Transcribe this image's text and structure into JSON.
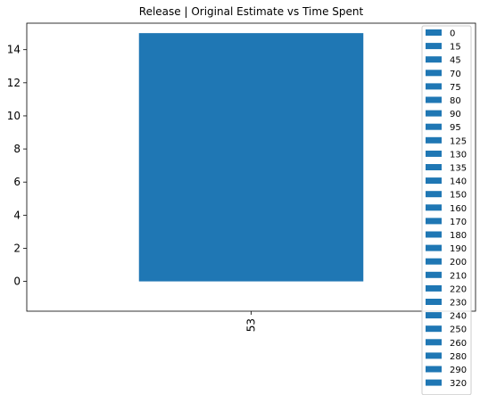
{
  "chart_data": {
    "type": "bar",
    "title": "Release | Original Estimate vs Time Spent",
    "xlabel": "",
    "ylabel": "",
    "categories": [
      "53"
    ],
    "ylim": [
      -1.8,
      15.6
    ],
    "yticks": [
      0,
      2,
      4,
      6,
      8,
      10,
      12,
      14
    ],
    "grid": false,
    "legend_position": "right",
    "bar_color": "#1f77b4",
    "legend": [
      "0",
      "15",
      "45",
      "70",
      "75",
      "80",
      "90",
      "95",
      "125",
      "130",
      "135",
      "140",
      "150",
      "160",
      "170",
      "180",
      "190",
      "200",
      "210",
      "220",
      "230",
      "240",
      "250",
      "260",
      "280",
      "290",
      "320"
    ],
    "series": [
      {
        "name": "0",
        "values": [
          15
        ]
      },
      {
        "name": "15",
        "values": [
          0
        ]
      },
      {
        "name": "45",
        "values": [
          0
        ]
      },
      {
        "name": "70",
        "values": [
          0
        ]
      },
      {
        "name": "75",
        "values": [
          0
        ]
      },
      {
        "name": "80",
        "values": [
          0
        ]
      },
      {
        "name": "90",
        "values": [
          0
        ]
      },
      {
        "name": "95",
        "values": [
          0
        ]
      },
      {
        "name": "125",
        "values": [
          0
        ]
      },
      {
        "name": "130",
        "values": [
          0
        ]
      },
      {
        "name": "135",
        "values": [
          0
        ]
      },
      {
        "name": "140",
        "values": [
          0
        ]
      },
      {
        "name": "150",
        "values": [
          0
        ]
      },
      {
        "name": "160",
        "values": [
          0
        ]
      },
      {
        "name": "170",
        "values": [
          0
        ]
      },
      {
        "name": "180",
        "values": [
          0
        ]
      },
      {
        "name": "190",
        "values": [
          0
        ]
      },
      {
        "name": "200",
        "values": [
          0
        ]
      },
      {
        "name": "210",
        "values": [
          0
        ]
      },
      {
        "name": "220",
        "values": [
          0
        ]
      },
      {
        "name": "230",
        "values": [
          0
        ]
      },
      {
        "name": "240",
        "values": [
          0
        ]
      },
      {
        "name": "250",
        "values": [
          0
        ]
      },
      {
        "name": "260",
        "values": [
          0
        ]
      },
      {
        "name": "280",
        "values": [
          0
        ]
      },
      {
        "name": "290",
        "values": [
          0
        ]
      },
      {
        "name": "320",
        "values": [
          0
        ]
      }
    ]
  }
}
